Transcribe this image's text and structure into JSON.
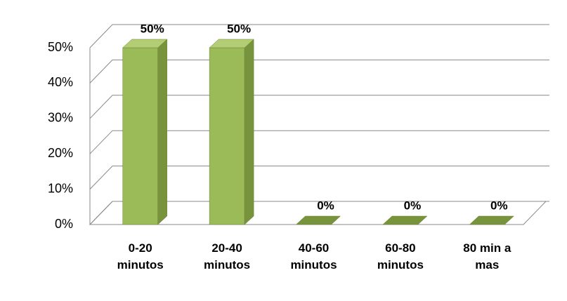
{
  "chart_data": {
    "type": "bar3d",
    "categories": [
      "0-20 minutos",
      "20-40 minutos",
      "40-60 minutos",
      "60-80 minutos",
      "80 min a mas"
    ],
    "values": [
      50,
      50,
      0,
      0,
      0
    ],
    "value_labels": [
      "50%",
      "50%",
      "0%",
      "0%",
      "0%"
    ],
    "color": "#9bbb59",
    "ylim": [
      0,
      50
    ],
    "yticks": [
      {
        "value": 0,
        "label": "0%"
      },
      {
        "value": 10,
        "label": "10%"
      },
      {
        "value": 20,
        "label": "20%"
      },
      {
        "value": 30,
        "label": "30%"
      },
      {
        "value": 40,
        "label": "40%"
      },
      {
        "value": 50,
        "label": "50%"
      }
    ],
    "grid": true
  }
}
